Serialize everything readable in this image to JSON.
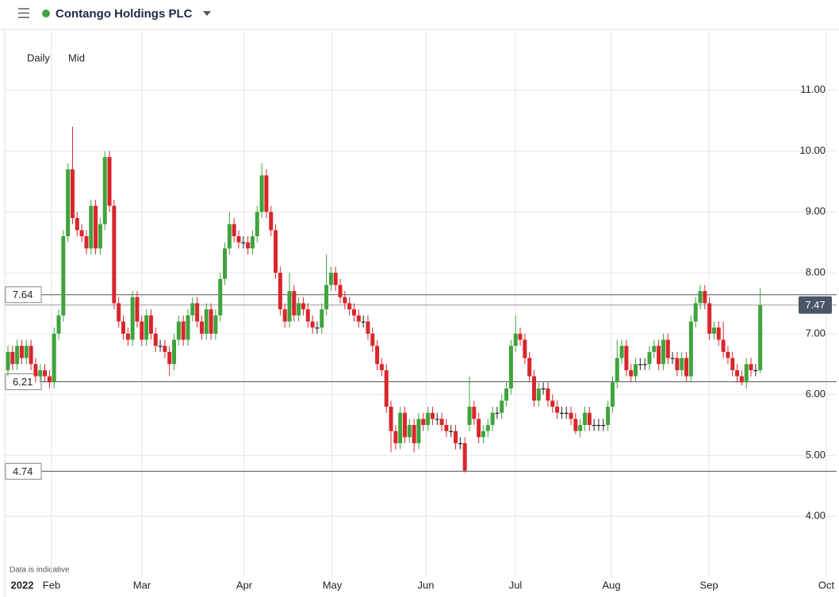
{
  "header": {
    "title": "Contango Holdings PLC"
  },
  "toolbar": {
    "interval": "Daily",
    "price_type": "Mid"
  },
  "chart_data": {
    "type": "candlestick",
    "note": "Data is indicative",
    "x_labels": [
      "2022",
      "Feb",
      "Mar",
      "Apr",
      "May",
      "Jun",
      "Jul",
      "Aug",
      "Sep",
      "Oct"
    ],
    "up_color": "#3fa33c",
    "down_color": "#d9262b",
    "ylim": [
      3.0,
      11.96
    ],
    "yticks": [
      {
        "value": 4,
        "label": "4.00"
      },
      {
        "value": 5,
        "label": "5.00"
      },
      {
        "value": 6,
        "label": "6.00"
      },
      {
        "value": 7,
        "label": "7.00"
      },
      {
        "value": 8,
        "label": "8.00"
      },
      {
        "value": 9,
        "label": "9.00"
      },
      {
        "value": 10,
        "label": "10.00"
      },
      {
        "value": 11,
        "label": "11.00"
      }
    ],
    "grid": true,
    "levels": [
      7.64,
      6.21,
      4.74
    ],
    "last_price": 7.47,
    "open": [
      6.4,
      6.7,
      6.5,
      6.8,
      6.6,
      6.8,
      6.5,
      6.3,
      6.4,
      6.3,
      6.2,
      7.0,
      7.3,
      8.6,
      9.7,
      8.9,
      8.7,
      8.6,
      8.4,
      9.1,
      8.4,
      8.8,
      9.9,
      9.1,
      7.5,
      7.2,
      7.0,
      6.9,
      7.6,
      7.2,
      6.9,
      7.3,
      7.0,
      6.8,
      6.8,
      6.7,
      6.5,
      6.9,
      7.2,
      6.9,
      7.3,
      7.5,
      7.2,
      7.0,
      7.4,
      7.0,
      7.3,
      7.9,
      8.4,
      8.8,
      8.6,
      8.5,
      8.5,
      8.4,
      8.6,
      9.0,
      9.6,
      9.0,
      8.7,
      8.0,
      7.4,
      7.2,
      7.7,
      7.3,
      7.5,
      7.4,
      7.2,
      7.1,
      7.1,
      7.4,
      7.8,
      8.0,
      7.8,
      7.6,
      7.5,
      7.4,
      7.3,
      7.2,
      7.2,
      7.0,
      6.8,
      6.5,
      6.4,
      5.8,
      5.4,
      5.2,
      5.7,
      5.3,
      5.5,
      5.2,
      5.6,
      5.5,
      5.7,
      5.6,
      5.6,
      5.5,
      5.4,
      5.4,
      5.2,
      5.2,
      5.5,
      5.8,
      5.6,
      5.3,
      5.4,
      5.5,
      5.7,
      5.7,
      5.9,
      6.1,
      6.8,
      7.0,
      6.9,
      6.6,
      6.3,
      5.9,
      6.1,
      6.1,
      5.9,
      5.8,
      5.7,
      5.7,
      5.7,
      5.6,
      5.4,
      5.5,
      5.7,
      5.5,
      5.5,
      5.5,
      5.5,
      5.8,
      6.2,
      6.6,
      6.8,
      6.4,
      6.3,
      6.5,
      6.5,
      6.5,
      6.7,
      6.8,
      6.5,
      6.9,
      6.6,
      6.6,
      6.4,
      6.6,
      6.3,
      7.2,
      7.5,
      7.7,
      7.5,
      7.0,
      7.1,
      6.9,
      6.7,
      6.6,
      6.4,
      6.3,
      6.2,
      6.5,
      6.4,
      6.4
    ],
    "high": [
      6.8,
      6.8,
      6.9,
      6.9,
      6.9,
      6.9,
      6.6,
      6.5,
      6.5,
      6.4,
      7.1,
      7.4,
      8.7,
      9.8,
      10.4,
      9.0,
      8.8,
      8.7,
      9.2,
      9.2,
      8.9,
      10.0,
      10.0,
      9.2,
      7.6,
      7.3,
      7.1,
      7.7,
      7.7,
      7.3,
      7.4,
      7.4,
      7.1,
      6.9,
      6.9,
      6.8,
      7.0,
      7.3,
      7.3,
      7.4,
      7.6,
      7.6,
      7.3,
      7.5,
      7.5,
      7.4,
      8.0,
      8.5,
      9.0,
      8.9,
      8.7,
      8.6,
      8.6,
      8.7,
      9.1,
      9.8,
      9.7,
      9.1,
      8.8,
      8.1,
      7.5,
      8.0,
      7.8,
      7.6,
      7.6,
      7.5,
      7.3,
      7.2,
      7.5,
      8.3,
      8.1,
      8.1,
      7.9,
      7.7,
      7.6,
      7.5,
      7.4,
      7.3,
      7.3,
      7.1,
      6.9,
      6.6,
      6.5,
      5.9,
      5.5,
      5.8,
      5.8,
      5.6,
      5.6,
      5.7,
      5.7,
      5.8,
      5.8,
      5.7,
      5.7,
      5.6,
      5.5,
      5.5,
      5.3,
      5.3,
      6.3,
      5.9,
      5.7,
      5.5,
      5.6,
      5.8,
      5.8,
      6.0,
      6.2,
      6.9,
      7.3,
      7.1,
      7.0,
      6.7,
      6.4,
      6.2,
      6.2,
      6.2,
      6.0,
      5.9,
      5.8,
      5.8,
      5.8,
      5.7,
      5.6,
      5.8,
      5.8,
      5.6,
      5.6,
      5.6,
      5.9,
      6.3,
      6.9,
      6.9,
      6.9,
      6.5,
      6.6,
      6.6,
      6.6,
      6.8,
      6.9,
      6.9,
      7.0,
      7.0,
      6.7,
      6.7,
      6.7,
      6.7,
      7.3,
      7.6,
      7.8,
      7.8,
      7.6,
      7.2,
      7.2,
      7.2,
      6.8,
      6.7,
      6.5,
      6.4,
      6.6,
      6.6,
      6.5,
      7.75
    ],
    "low": [
      6.3,
      6.4,
      6.4,
      6.5,
      6.5,
      6.4,
      6.2,
      6.2,
      6.2,
      6.1,
      6.1,
      6.9,
      7.2,
      8.5,
      8.8,
      8.6,
      8.5,
      8.3,
      8.3,
      8.3,
      8.3,
      8.7,
      9.0,
      7.4,
      7.1,
      6.9,
      6.8,
      6.8,
      7.1,
      6.8,
      6.8,
      6.9,
      6.7,
      6.7,
      6.6,
      6.3,
      6.4,
      6.8,
      6.8,
      6.8,
      7.2,
      7.1,
      6.9,
      6.9,
      6.9,
      6.9,
      7.2,
      7.8,
      8.3,
      8.5,
      8.4,
      8.4,
      8.3,
      8.3,
      8.5,
      8.9,
      8.9,
      8.6,
      7.9,
      7.3,
      7.1,
      7.1,
      7.2,
      7.2,
      7.3,
      7.1,
      7.0,
      7.0,
      7.0,
      7.3,
      7.7,
      7.7,
      7.5,
      7.4,
      7.3,
      7.2,
      7.1,
      7.1,
      6.9,
      6.7,
      6.4,
      6.3,
      5.7,
      5.05,
      5.1,
      5.1,
      5.2,
      5.2,
      5.05,
      5.1,
      5.4,
      5.4,
      5.5,
      5.5,
      5.4,
      5.3,
      5.3,
      5.1,
      5.1,
      4.72,
      5.4,
      5.5,
      5.2,
      5.2,
      5.3,
      5.4,
      5.6,
      5.6,
      5.8,
      6.0,
      6.7,
      6.8,
      6.5,
      6.2,
      5.8,
      5.8,
      6.0,
      5.8,
      5.7,
      5.6,
      5.6,
      5.6,
      5.5,
      5.35,
      5.3,
      5.4,
      5.4,
      5.4,
      5.4,
      5.4,
      5.4,
      5.7,
      6.1,
      6.5,
      6.3,
      6.2,
      6.2,
      6.4,
      6.4,
      6.4,
      6.6,
      6.4,
      6.4,
      6.5,
      6.5,
      6.3,
      6.3,
      6.2,
      6.2,
      7.1,
      7.4,
      7.4,
      6.9,
      6.9,
      6.8,
      6.6,
      6.5,
      6.3,
      6.2,
      6.15,
      6.1,
      6.3,
      6.3,
      6.35
    ],
    "close": [
      6.7,
      6.5,
      6.8,
      6.6,
      6.8,
      6.5,
      6.3,
      6.4,
      6.3,
      6.2,
      7.0,
      7.3,
      8.6,
      9.7,
      8.9,
      8.7,
      8.6,
      8.4,
      9.1,
      8.4,
      8.8,
      9.9,
      9.1,
      7.5,
      7.2,
      7.0,
      6.9,
      7.6,
      7.2,
      6.9,
      7.3,
      7.0,
      6.8,
      6.8,
      6.7,
      6.5,
      6.9,
      7.2,
      6.9,
      7.3,
      7.5,
      7.2,
      7.0,
      7.4,
      7.0,
      7.3,
      7.9,
      8.4,
      8.8,
      8.6,
      8.5,
      8.5,
      8.4,
      8.6,
      9.0,
      9.6,
      9.0,
      8.7,
      8.0,
      7.4,
      7.2,
      7.7,
      7.3,
      7.5,
      7.4,
      7.2,
      7.1,
      7.1,
      7.4,
      7.8,
      8.0,
      7.8,
      7.6,
      7.5,
      7.4,
      7.3,
      7.2,
      7.2,
      7.0,
      6.8,
      6.5,
      6.4,
      5.8,
      5.4,
      5.2,
      5.7,
      5.3,
      5.5,
      5.2,
      5.6,
      5.5,
      5.7,
      5.6,
      5.6,
      5.5,
      5.4,
      5.4,
      5.2,
      5.2,
      4.75,
      5.8,
      5.6,
      5.3,
      5.4,
      5.5,
      5.7,
      5.7,
      5.9,
      6.1,
      6.8,
      7.0,
      6.9,
      6.6,
      6.3,
      5.9,
      6.1,
      6.1,
      5.9,
      5.8,
      5.7,
      5.7,
      5.7,
      5.6,
      5.4,
      5.5,
      5.7,
      5.5,
      5.5,
      5.5,
      5.5,
      5.8,
      6.2,
      6.6,
      6.8,
      6.4,
      6.3,
      6.5,
      6.5,
      6.5,
      6.7,
      6.8,
      6.5,
      6.9,
      6.6,
      6.6,
      6.4,
      6.6,
      6.3,
      7.2,
      7.5,
      7.7,
      7.5,
      7.0,
      7.1,
      6.9,
      6.7,
      6.6,
      6.4,
      6.3,
      6.2,
      6.5,
      6.4,
      6.4,
      7.47
    ]
  }
}
